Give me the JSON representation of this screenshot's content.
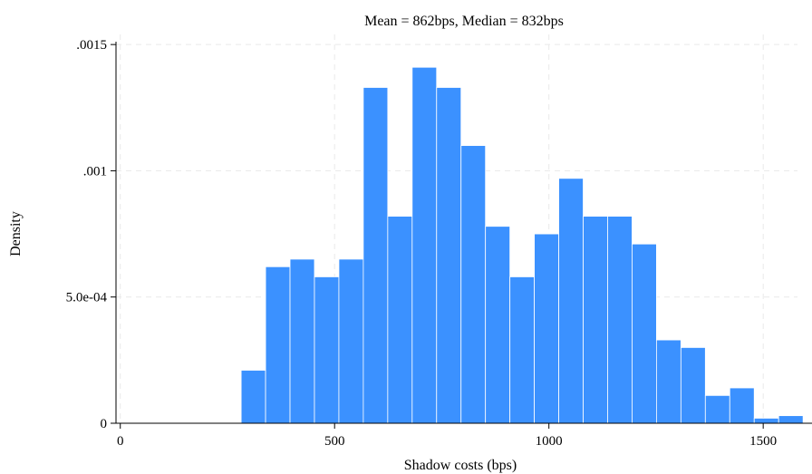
{
  "chart_data": {
    "type": "bar",
    "title": "Mean = 862bps, Median = 832bps",
    "xlabel": "Shadow costs (bps)",
    "ylabel": "Density",
    "xlim": [
      -10,
      1580
    ],
    "ylim": [
      0,
      0.00154
    ],
    "x_ticks": [
      {
        "value": 0,
        "label": "0"
      },
      {
        "value": 500,
        "label": "500"
      },
      {
        "value": 1000,
        "label": "1000"
      },
      {
        "value": 1500,
        "label": "1500"
      }
    ],
    "y_ticks": [
      {
        "value": 0,
        "label": "0"
      },
      {
        "value": 0.0005,
        "label": "5.0e-04"
      },
      {
        "value": 0.001,
        "label": ".001"
      },
      {
        "value": 0.0015,
        "label": ".0015"
      }
    ],
    "grid": true,
    "bar_color": "#3b91ff",
    "bins": [
      {
        "start": 282,
        "end": 339,
        "value": 0.00021
      },
      {
        "start": 339,
        "end": 396,
        "value": 0.00062
      },
      {
        "start": 396,
        "end": 453,
        "value": 0.00065
      },
      {
        "start": 453,
        "end": 510,
        "value": 0.00058
      },
      {
        "start": 510,
        "end": 567,
        "value": 0.00065
      },
      {
        "start": 567,
        "end": 624,
        "value": 0.00133
      },
      {
        "start": 624,
        "end": 681,
        "value": 0.00082
      },
      {
        "start": 681,
        "end": 738,
        "value": 0.00141
      },
      {
        "start": 738,
        "end": 795,
        "value": 0.00133
      },
      {
        "start": 795,
        "end": 852,
        "value": 0.0011
      },
      {
        "start": 852,
        "end": 909,
        "value": 0.00078
      },
      {
        "start": 909,
        "end": 966,
        "value": 0.00058
      },
      {
        "start": 966,
        "end": 1023,
        "value": 0.00075
      },
      {
        "start": 1023,
        "end": 1080,
        "value": 0.00097
      },
      {
        "start": 1080,
        "end": 1137,
        "value": 0.00082
      },
      {
        "start": 1137,
        "end": 1194,
        "value": 0.00082
      },
      {
        "start": 1194,
        "end": 1251,
        "value": 0.00071
      },
      {
        "start": 1251,
        "end": 1308,
        "value": 0.00033
      },
      {
        "start": 1308,
        "end": 1365,
        "value": 0.0003
      },
      {
        "start": 1365,
        "end": 1422,
        "value": 0.00011
      },
      {
        "start": 1422,
        "end": 1479,
        "value": 0.00014
      },
      {
        "start": 1479,
        "end": 1536,
        "value": 2e-05
      },
      {
        "start": 1536,
        "end": 1593,
        "value": 3e-05
      }
    ]
  }
}
